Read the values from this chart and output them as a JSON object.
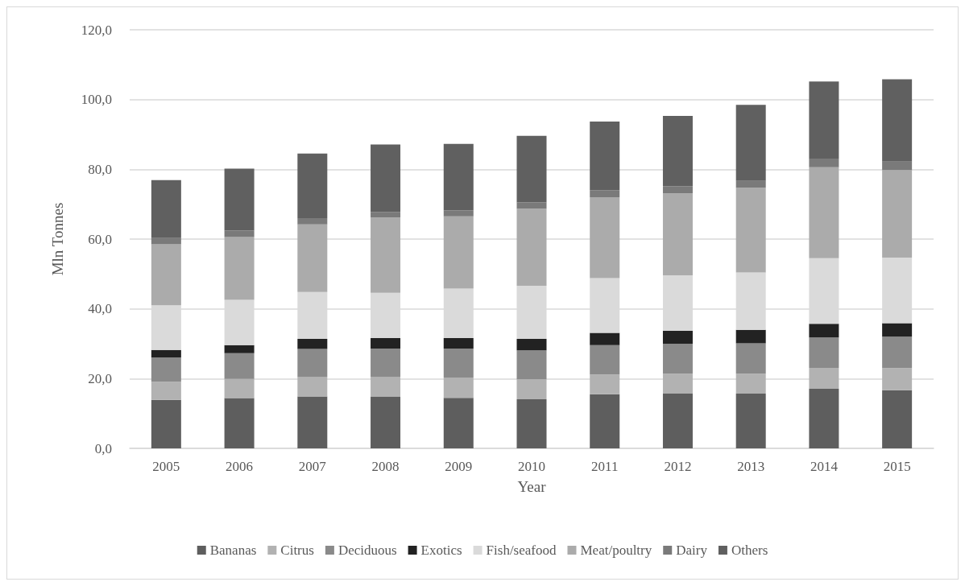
{
  "chart_data": {
    "type": "bar",
    "stacked": true,
    "xlabel": "Year",
    "ylabel": "Mln Tonnes",
    "categories": [
      "2005",
      "2006",
      "2007",
      "2008",
      "2009",
      "2010",
      "2011",
      "2012",
      "2013",
      "2014",
      "2015"
    ],
    "series": [
      {
        "name": "Bananas",
        "color": "#5e5e5e",
        "values": [
          13.9,
          14.4,
          14.9,
          14.9,
          14.5,
          14.1,
          15.5,
          15.8,
          15.7,
          17.1,
          16.7
        ]
      },
      {
        "name": "Citrus",
        "color": "#b2b2b2",
        "values": [
          5.2,
          5.5,
          5.5,
          5.5,
          5.8,
          5.7,
          5.7,
          5.6,
          5.7,
          6.0,
          6.3
        ]
      },
      {
        "name": "Deciduous",
        "color": "#8a8a8a",
        "values": [
          7.0,
          7.4,
          8.1,
          8.2,
          8.3,
          8.3,
          8.4,
          8.6,
          8.7,
          8.7,
          9.0
        ]
      },
      {
        "name": "Exotics",
        "color": "#222222",
        "values": [
          2.1,
          2.3,
          2.9,
          3.0,
          3.0,
          3.3,
          3.5,
          3.7,
          3.9,
          3.9,
          3.9
        ]
      },
      {
        "name": "Fish/seafood",
        "color": "#dadada",
        "values": [
          12.8,
          13.0,
          13.4,
          13.0,
          14.2,
          15.2,
          15.7,
          15.9,
          16.4,
          18.8,
          18.8
        ]
      },
      {
        "name": "Meat/poultry",
        "color": "#ababab",
        "values": [
          17.5,
          18.0,
          19.4,
          21.6,
          20.7,
          22.1,
          23.2,
          23.5,
          24.3,
          26.1,
          25.1
        ]
      },
      {
        "name": "Dairy",
        "color": "#7a7a7a",
        "values": [
          1.8,
          1.8,
          1.8,
          1.6,
          1.7,
          1.8,
          2.0,
          2.0,
          2.0,
          2.5,
          2.4
        ]
      },
      {
        "name": "Others",
        "color": "#606060",
        "values": [
          16.6,
          17.8,
          18.5,
          19.3,
          19.1,
          19.1,
          19.7,
          20.2,
          21.8,
          22.1,
          23.6
        ]
      }
    ],
    "ylim": [
      0,
      120
    ],
    "yticks": [
      {
        "value": 0,
        "label": "0,0"
      },
      {
        "value": 20,
        "label": "20,0"
      },
      {
        "value": 40,
        "label": "40,0"
      },
      {
        "value": 60,
        "label": "60,0"
      },
      {
        "value": 80,
        "label": "80,0"
      },
      {
        "value": 100,
        "label": "100,0"
      },
      {
        "value": 120,
        "label": "120,0"
      }
    ],
    "grid": "y",
    "legend": "bottom"
  }
}
